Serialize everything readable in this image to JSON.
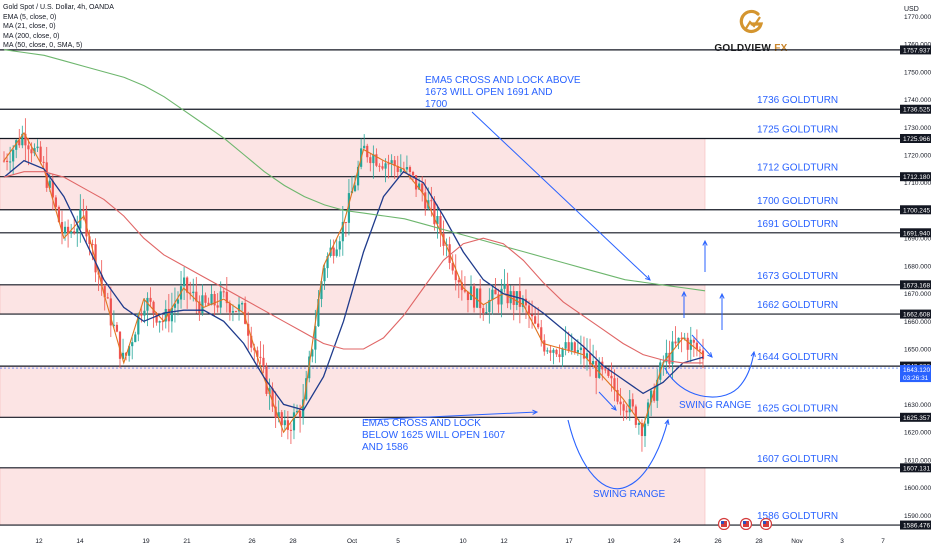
{
  "header": {
    "symbol_line": "Gold Spot / U.S. Dollar, 4h, OANDA",
    "indicators": [
      "EMA (5, close, 0)",
      "MA (21, close, 0)",
      "MA (200, close, 0)",
      "MA (50, close, 0, SMA, 5)"
    ]
  },
  "logo": {
    "name": "GOLDVIEW",
    "suffix": "FX",
    "icon": "goldview-g-logo-icon"
  },
  "colors": {
    "background": "#ffffff",
    "ema5": "#e0741f",
    "ma21": "#1f3b8c",
    "ma200": "#6db66d",
    "ma50": "#e06666",
    "candle_up": "#26a69a",
    "candle_down": "#ef5350",
    "zone_fill": "#fce4e4",
    "level_line": "#131722",
    "annotation": "#2962ff"
  },
  "chart_data": {
    "type": "candlestick",
    "axis": {
      "currency": "USD",
      "ylim": [
        1580,
        1775
      ],
      "yticks": [
        1590,
        1600,
        1610,
        1620,
        1630,
        1640,
        1650,
        1660,
        1670,
        1680,
        1690,
        1700,
        1710,
        1720,
        1730,
        1740,
        1750,
        1760,
        1770
      ],
      "xticks": [
        "12",
        "14",
        "19",
        "21",
        "26",
        "28",
        "Oct",
        "5",
        "10",
        "12",
        "17",
        "19",
        "24",
        "26",
        "28",
        "Nov",
        "3",
        "7"
      ],
      "grid": false
    },
    "price_badges": [
      "1757.937",
      "1736.525",
      "1725.966",
      "1712.180",
      "1700.245",
      "1691.940",
      "1673.168",
      "1662.608",
      "1643.836",
      "1625.357",
      "1607.131",
      "1586.476"
    ],
    "current_price": {
      "value": "1643.120",
      "countdown": "03:26:31"
    },
    "levels": [
      {
        "label": "1736 GOLDTURN",
        "value": 1736.525
      },
      {
        "label": "1725 GOLDTURN",
        "value": 1725.966
      },
      {
        "label": "1712 GOLDTURN",
        "value": 1712.18
      },
      {
        "label": "1700 GOLDTURN",
        "value": 1700.245
      },
      {
        "label": "1691 GOLDTURN",
        "value": 1691.94
      },
      {
        "label": "1673 GOLDTURN",
        "value": 1673.168
      },
      {
        "label": "1662 GOLDTURN",
        "value": 1662.608
      },
      {
        "label": "1644 GOLDTURN",
        "value": 1643.836
      },
      {
        "label": "1625 GOLDTURN",
        "value": 1625.357
      },
      {
        "label": "1607 GOLDTURN",
        "value": 1607.131
      },
      {
        "label": "1586 GOLDTURN",
        "value": 1586.476
      }
    ],
    "extra_line": 1757.937,
    "zones": [
      [
        1700.245,
        1725.966
      ],
      [
        1662.608,
        1673.168
      ],
      [
        1625.357,
        1643.836
      ],
      [
        1586.476,
        1607.131
      ]
    ],
    "annotations": [
      {
        "lines": [
          "EMA5 CROSS AND LOCK ABOVE",
          "1673 WILL OPEN 1691 AND",
          "1700"
        ]
      },
      {
        "lines": [
          "EMA5 CROSS AND LOCK",
          "BELOW 1625 WILL OPEN 1607",
          "AND 1586"
        ]
      },
      {
        "lines": [
          "SWING RANGE"
        ]
      },
      {
        "lines": [
          "SWING RANGE"
        ]
      }
    ],
    "series": [
      {
        "name": "EMA (5, close, 0)",
        "values": [
          1718,
          1728,
          1715,
          1690,
          1698,
          1670,
          1645,
          1668,
          1660,
          1672,
          1665,
          1668,
          1663,
          1640,
          1620,
          1630,
          1680,
          1695,
          1722,
          1718,
          1715,
          1706,
          1690,
          1672,
          1666,
          1670,
          1666,
          1652,
          1650,
          1648,
          1640,
          1632,
          1622,
          1645,
          1654,
          1648
        ]
      },
      {
        "name": "MA (21, close, 0)",
        "values": [
          1712,
          1718,
          1715,
          1705,
          1690,
          1675,
          1665,
          1660,
          1663,
          1664,
          1664,
          1660,
          1652,
          1640,
          1630,
          1628,
          1640,
          1660,
          1685,
          1705,
          1714,
          1710,
          1698,
          1685,
          1675,
          1670,
          1668,
          1663,
          1657,
          1651,
          1644,
          1639,
          1634,
          1638,
          1645,
          1647
        ]
      },
      {
        "name": "MA (200, close, 0)",
        "values": [
          1758,
          1757,
          1756,
          1754,
          1752,
          1750,
          1748,
          1745,
          1741,
          1736,
          1731,
          1726,
          1720,
          1714,
          1709,
          1705,
          1702,
          1700,
          1699,
          1698,
          1697,
          1695,
          1693,
          1691,
          1689,
          1687,
          1685,
          1683,
          1681,
          1679,
          1677,
          1675,
          1674,
          1673,
          1672,
          1671
        ]
      },
      {
        "name": "MA (50, close, 0, SMA, 5)",
        "values": [
          1712,
          1714,
          1714,
          1712,
          1708,
          1704,
          1698,
          1690,
          1684,
          1680,
          1676,
          1672,
          1668,
          1664,
          1660,
          1656,
          1652,
          1650,
          1650,
          1654,
          1662,
          1672,
          1682,
          1688,
          1690,
          1688,
          1682,
          1674,
          1667,
          1662,
          1657,
          1652,
          1648,
          1646,
          1645,
          1645
        ]
      }
    ]
  }
}
